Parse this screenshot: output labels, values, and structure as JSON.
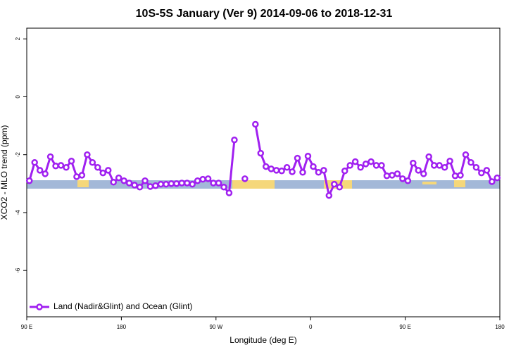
{
  "chart_data": {
    "type": "line",
    "title": "10S-5S January (Ver 9)   2014-09-06 to 2018-12-31",
    "x_label": "Longitude (deg E)",
    "y_label": "XCO2 - MLO trend (ppm)",
    "x": [
      92.5,
      97.5,
      102.5,
      107.5,
      112.5,
      117.5,
      122.5,
      127.5,
      132.5,
      137.5,
      142.5,
      147.5,
      152.5,
      157.5,
      162.5,
      167.5,
      172.5,
      177.5,
      182.5,
      187.5,
      192.5,
      197.5,
      202.5,
      207.5,
      212.5,
      217.5,
      222.5,
      227.5,
      232.5,
      237.5,
      242.5,
      247.5,
      252.5,
      257.5,
      262.5,
      267.5,
      272.5,
      277.5,
      282.5,
      287.5,
      292.5,
      297.5,
      302.5,
      307.5,
      312.5,
      317.5,
      322.5,
      327.5,
      332.5,
      337.5,
      342.5,
      347.5,
      352.5,
      357.5,
      362.5,
      367.5,
      372.5,
      377.5,
      382.5,
      387.5,
      392.5,
      397.5,
      402.5,
      407.5,
      412.5,
      417.5,
      422.5,
      427.5,
      432.5,
      437.5,
      442.5,
      447.5,
      452.5,
      457.5,
      462.5,
      467.5,
      472.5,
      477.5,
      482.5,
      487.5,
      492.5,
      497.5,
      502.5,
      507.5,
      512.5,
      517.5,
      522.5,
      527.5,
      532.5,
      537.5
    ],
    "series": [
      {
        "name": "Land (Nadir&Glint) and Ocean (Glint)",
        "color": "#a020f0",
        "values": [
          -2.9,
          -2.27,
          -2.54,
          -2.66,
          -2.07,
          -2.39,
          -2.37,
          -2.44,
          -2.22,
          -2.76,
          -2.71,
          -2.0,
          -2.27,
          -2.44,
          -2.63,
          -2.54,
          -2.95,
          -2.8,
          -2.9,
          -2.98,
          -3.05,
          -3.12,
          -2.9,
          -3.1,
          -3.07,
          -3.02,
          -3.02,
          -3.0,
          -3.0,
          -2.98,
          -2.98,
          -3.02,
          -2.9,
          -2.85,
          -2.83,
          -2.98,
          -2.98,
          -3.12,
          -3.32,
          -1.49,
          null,
          -2.83,
          null,
          -0.95,
          -1.95,
          -2.41,
          -2.49,
          -2.54,
          -2.56,
          -2.44,
          -2.59,
          -2.12,
          -2.61,
          -2.05,
          -2.41,
          -2.61,
          -2.54,
          -3.41,
          -3.02,
          -3.12,
          -2.56,
          -2.37,
          -2.24,
          -2.44,
          -2.32,
          -2.24,
          -2.37,
          -2.37,
          -2.73,
          -2.71,
          -2.66,
          -2.83,
          -2.9,
          -2.29,
          -2.54,
          -2.66,
          -2.07,
          -2.37,
          -2.37,
          -2.44,
          -2.22,
          -2.73,
          -2.71,
          -2.0,
          -2.27,
          -2.44,
          -2.63,
          -2.54,
          -2.93,
          -2.8
        ]
      }
    ],
    "xlim": [
      90,
      540
    ],
    "xticks": [
      {
        "value": 90,
        "label": "90 E"
      },
      180,
      {
        "value": 270,
        "label": "90 W"
      },
      {
        "value": 360,
        "label": "0"
      },
      {
        "value": 450,
        "label": "90 E"
      },
      {
        "value": 540,
        "label": "180"
      }
    ],
    "ylim": [
      -7.6,
      2.37
    ],
    "yticks": [
      2,
      0,
      -2,
      -4,
      -6
    ],
    "legend_position": "bottom-left"
  }
}
